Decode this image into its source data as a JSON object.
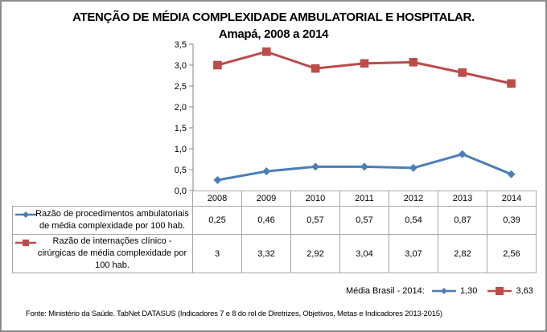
{
  "chart_data": {
    "type": "line",
    "title": "ATENÇÃO DE MÉDIA COMPLEXIDADE AMBULATORIAL E HOSPITALAR.",
    "subtitle": "Amapá, 2008 a 2014",
    "categories": [
      "2008",
      "2009",
      "2010",
      "2011",
      "2012",
      "2013",
      "2014"
    ],
    "ylim": [
      0,
      3.5
    ],
    "yticks": [
      "0,0",
      "0,5",
      "1,0",
      "1,5",
      "2,0",
      "2,5",
      "3,0",
      "3,5"
    ],
    "ytick_values": [
      0,
      0.5,
      1.0,
      1.5,
      2.0,
      2.5,
      3.0,
      3.5
    ],
    "xlabel": "",
    "ylabel": "",
    "grid": false,
    "legend": "data-table-bottom",
    "series": [
      {
        "name": "Razão de procedimentos ambulatoriais de média complexidade por 100 hab.",
        "name_lines": [
          "Razão de procedimentos ambulatoriais",
          "de média complexidade por 100 hab."
        ],
        "marker": "diamond",
        "color": "#4a7ebb",
        "values": [
          0.25,
          0.46,
          0.57,
          0.57,
          0.54,
          0.87,
          0.39
        ],
        "labels": [
          "0,25",
          "0,46",
          "0,57",
          "0,57",
          "0,54",
          "0,87",
          "0,39"
        ]
      },
      {
        "name": "Razão de internações clínico - cirúrgicas de média complexidade por 100 hab.",
        "name_lines": [
          "Razão de internações clínico -",
          "cirúrgicas de média complexidade por",
          "100 hab."
        ],
        "marker": "square",
        "color": "#be4b48",
        "values": [
          3.0,
          3.32,
          2.92,
          3.04,
          3.07,
          2.82,
          2.56
        ],
        "labels": [
          "3",
          "3,32",
          "2,92",
          "3,04",
          "3,07",
          "2,82",
          "2,56"
        ]
      }
    ]
  },
  "brasil": {
    "label": "Média Brasil - 2014:",
    "ambulatorial": "1,30",
    "internacoes": "3,63"
  },
  "source": "Fonte: Ministério da Saúde. TabNet DATASUS (Indicadores 7 e 8 do rol de Diretrizes, Objetivos, Metas e Indicadores 2013-2015)"
}
